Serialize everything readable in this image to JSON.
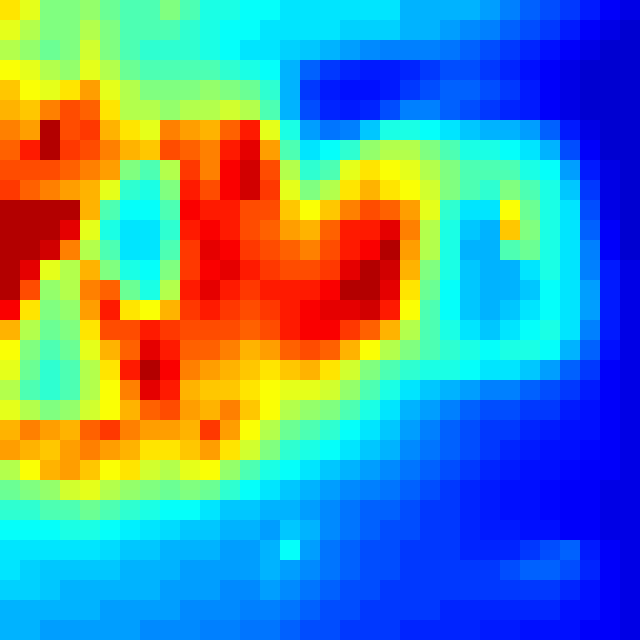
{
  "chart_data": {
    "type": "heatmap",
    "zlim": [
      0,
      100
    ],
    "tick_labels": false,
    "cells": [
      [
        65,
        60,
        50,
        50,
        52,
        48,
        45,
        45,
        50,
        45,
        40,
        40,
        38,
        38,
        35,
        35,
        35,
        35,
        35,
        35,
        30,
        30,
        30,
        30,
        28,
        25,
        22,
        20,
        18,
        15,
        12,
        10
      ],
      [
        60,
        55,
        50,
        50,
        55,
        50,
        45,
        45,
        45,
        42,
        40,
        38,
        38,
        35,
        35,
        35,
        35,
        33,
        33,
        33,
        30,
        30,
        28,
        26,
        25,
        22,
        20,
        18,
        15,
        12,
        10,
        8
      ],
      [
        55,
        52,
        48,
        50,
        58,
        50,
        45,
        42,
        42,
        42,
        40,
        38,
        35,
        35,
        33,
        32,
        30,
        28,
        26,
        25,
        25,
        25,
        24,
        22,
        20,
        18,
        16,
        14,
        12,
        10,
        8,
        8
      ],
      [
        62,
        60,
        55,
        52,
        60,
        55,
        48,
        45,
        45,
        45,
        45,
        42,
        40,
        38,
        30,
        22,
        18,
        16,
        15,
        15,
        16,
        18,
        20,
        20,
        18,
        16,
        14,
        12,
        10,
        8,
        8,
        8
      ],
      [
        68,
        62,
        60,
        65,
        72,
        60,
        55,
        50,
        50,
        50,
        52,
        50,
        48,
        42,
        30,
        18,
        15,
        14,
        14,
        15,
        18,
        20,
        22,
        22,
        20,
        18,
        15,
        12,
        10,
        8,
        8,
        8
      ],
      [
        70,
        68,
        75,
        80,
        78,
        65,
        55,
        55,
        52,
        55,
        55,
        58,
        55,
        45,
        30,
        20,
        16,
        15,
        16,
        20,
        25,
        25,
        22,
        20,
        18,
        16,
        15,
        12,
        10,
        8,
        8,
        8
      ],
      [
        75,
        72,
        95,
        80,
        82,
        70,
        65,
        60,
        75,
        72,
        70,
        78,
        85,
        60,
        40,
        28,
        24,
        25,
        32,
        40,
        40,
        38,
        35,
        32,
        30,
        30,
        28,
        22,
        15,
        10,
        8,
        8
      ],
      [
        78,
        85,
        95,
        82,
        80,
        75,
        70,
        68,
        80,
        78,
        75,
        85,
        90,
        72,
        45,
        35,
        38,
        42,
        52,
        55,
        55,
        50,
        45,
        40,
        40,
        38,
        35,
        30,
        20,
        12,
        8,
        8
      ],
      [
        80,
        80,
        80,
        78,
        75,
        72,
        50,
        45,
        55,
        82,
        75,
        88,
        92,
        80,
        55,
        42,
        45,
        60,
        65,
        62,
        60,
        55,
        50,
        45,
        45,
        45,
        40,
        38,
        28,
        15,
        10,
        8
      ],
      [
        82,
        78,
        75,
        72,
        70,
        60,
        42,
        40,
        50,
        85,
        80,
        88,
        92,
        82,
        60,
        50,
        55,
        65,
        70,
        65,
        62,
        58,
        50,
        45,
        42,
        50,
        45,
        40,
        32,
        18,
        10,
        8
      ],
      [
        95,
        95,
        95,
        95,
        70,
        45,
        38,
        38,
        45,
        88,
        85,
        85,
        80,
        80,
        68,
        62,
        68,
        75,
        80,
        78,
        72,
        60,
        42,
        35,
        35,
        62,
        48,
        40,
        35,
        20,
        10,
        8
      ],
      [
        95,
        95,
        95,
        90,
        60,
        40,
        35,
        35,
        42,
        85,
        88,
        85,
        80,
        78,
        72,
        70,
        78,
        85,
        85,
        90,
        75,
        55,
        40,
        32,
        30,
        68,
        50,
        40,
        35,
        22,
        12,
        8
      ],
      [
        95,
        95,
        92,
        75,
        55,
        45,
        35,
        35,
        45,
        82,
        90,
        88,
        82,
        80,
        78,
        75,
        80,
        85,
        88,
        95,
        72,
        55,
        40,
        30,
        30,
        45,
        48,
        40,
        35,
        25,
        12,
        8
      ],
      [
        95,
        90,
        60,
        55,
        70,
        50,
        40,
        38,
        50,
        82,
        88,
        90,
        85,
        82,
        80,
        80,
        82,
        90,
        95,
        92,
        70,
        50,
        40,
        32,
        30,
        30,
        35,
        40,
        35,
        25,
        15,
        10
      ],
      [
        95,
        80,
        52,
        55,
        75,
        78,
        48,
        40,
        55,
        85,
        90,
        85,
        82,
        85,
        85,
        85,
        88,
        95,
        95,
        90,
        65,
        48,
        38,
        32,
        30,
        30,
        32,
        38,
        35,
        28,
        15,
        10
      ],
      [
        88,
        65,
        50,
        52,
        72,
        85,
        65,
        62,
        70,
        82,
        85,
        82,
        80,
        82,
        85,
        88,
        90,
        90,
        92,
        85,
        62,
        45,
        38,
        32,
        30,
        32,
        35,
        38,
        35,
        28,
        15,
        10
      ],
      [
        70,
        55,
        48,
        50,
        65,
        80,
        80,
        85,
        82,
        80,
        80,
        80,
        78,
        80,
        85,
        88,
        88,
        82,
        78,
        70,
        55,
        45,
        40,
        35,
        32,
        35,
        38,
        40,
        35,
        25,
        15,
        10
      ],
      [
        62,
        50,
        45,
        48,
        60,
        70,
        78,
        90,
        85,
        78,
        78,
        75,
        70,
        72,
        78,
        80,
        78,
        70,
        62,
        55,
        50,
        45,
        42,
        40,
        38,
        40,
        40,
        38,
        30,
        22,
        14,
        10
      ],
      [
        60,
        48,
        42,
        45,
        55,
        65,
        85,
        95,
        88,
        75,
        72,
        70,
        68,
        65,
        68,
        70,
        65,
        58,
        50,
        45,
        42,
        40,
        40,
        38,
        35,
        35,
        32,
        28,
        22,
        18,
        12,
        10
      ],
      [
        55,
        45,
        42,
        45,
        55,
        62,
        75,
        90,
        85,
        70,
        68,
        68,
        65,
        62,
        60,
        60,
        58,
        52,
        45,
        40,
        35,
        32,
        30,
        28,
        25,
        25,
        22,
        20,
        18,
        15,
        12,
        10
      ],
      [
        60,
        55,
        50,
        52,
        58,
        62,
        70,
        78,
        80,
        72,
        70,
        75,
        68,
        62,
        55,
        52,
        50,
        45,
        40,
        35,
        30,
        28,
        25,
        22,
        20,
        20,
        18,
        18,
        15,
        14,
        12,
        10
      ],
      [
        70,
        75,
        72,
        70,
        78,
        82,
        75,
        72,
        72,
        70,
        82,
        72,
        62,
        55,
        48,
        45,
        42,
        38,
        35,
        32,
        28,
        25,
        22,
        20,
        18,
        18,
        16,
        15,
        14,
        14,
        12,
        10
      ],
      [
        72,
        70,
        68,
        72,
        75,
        72,
        70,
        65,
        65,
        68,
        72,
        65,
        58,
        50,
        42,
        40,
        38,
        35,
        32,
        30,
        26,
        24,
        22,
        20,
        18,
        16,
        15,
        14,
        14,
        13,
        12,
        10
      ],
      [
        55,
        62,
        70,
        72,
        68,
        62,
        65,
        58,
        55,
        60,
        62,
        52,
        45,
        40,
        38,
        35,
        32,
        30,
        28,
        26,
        24,
        22,
        20,
        18,
        16,
        15,
        14,
        14,
        13,
        12,
        12,
        10
      ],
      [
        48,
        50,
        52,
        58,
        60,
        55,
        52,
        50,
        48,
        50,
        48,
        42,
        38,
        35,
        32,
        30,
        28,
        26,
        25,
        24,
        22,
        20,
        18,
        16,
        15,
        14,
        14,
        13,
        12,
        12,
        10,
        10
      ],
      [
        42,
        42,
        45,
        45,
        48,
        45,
        42,
        40,
        38,
        38,
        35,
        32,
        32,
        30,
        30,
        28,
        26,
        24,
        22,
        22,
        20,
        18,
        18,
        16,
        15,
        14,
        14,
        13,
        12,
        12,
        10,
        10
      ],
      [
        38,
        38,
        38,
        40,
        40,
        38,
        36,
        35,
        34,
        32,
        32,
        30,
        30,
        28,
        32,
        30,
        26,
        24,
        22,
        20,
        20,
        18,
        18,
        16,
        15,
        15,
        14,
        14,
        12,
        12,
        10,
        10
      ],
      [
        35,
        35,
        35,
        35,
        35,
        34,
        32,
        32,
        30,
        30,
        30,
        28,
        28,
        30,
        38,
        28,
        24,
        22,
        20,
        20,
        18,
        18,
        18,
        16,
        16,
        16,
        18,
        20,
        22,
        15,
        12,
        10
      ],
      [
        35,
        33,
        32,
        32,
        32,
        32,
        30,
        30,
        30,
        28,
        28,
        28,
        28,
        30,
        28,
        26,
        24,
        22,
        20,
        20,
        18,
        18,
        18,
        18,
        18,
        20,
        22,
        22,
        20,
        16,
        12,
        10
      ],
      [
        33,
        33,
        32,
        30,
        30,
        30,
        30,
        30,
        28,
        28,
        28,
        26,
        26,
        28,
        26,
        24,
        22,
        20,
        20,
        18,
        18,
        18,
        18,
        18,
        18,
        18,
        18,
        18,
        16,
        14,
        12,
        10
      ],
      [
        30,
        30,
        30,
        30,
        30,
        28,
        28,
        28,
        28,
        26,
        26,
        26,
        25,
        25,
        24,
        22,
        20,
        20,
        18,
        18,
        18,
        18,
        16,
        16,
        16,
        16,
        16,
        16,
        14,
        14,
        12,
        10
      ],
      [
        30,
        30,
        28,
        28,
        28,
        28,
        28,
        26,
        26,
        26,
        25,
        25,
        24,
        24,
        22,
        20,
        20,
        18,
        18,
        18,
        16,
        16,
        16,
        16,
        15,
        15,
        14,
        14,
        14,
        12,
        12,
        10
      ]
    ]
  }
}
